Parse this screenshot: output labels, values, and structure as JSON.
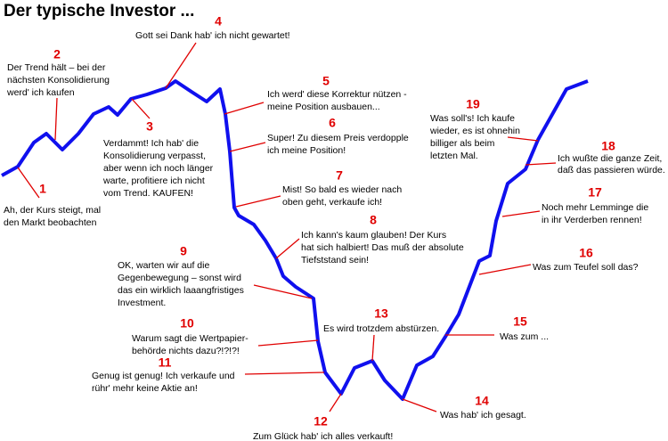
{
  "title": "Der typische Investor ...",
  "annotations": [
    {
      "number": "1",
      "lines": [
        "Ah, der Kurs steigt, mal",
        "den Markt beobachten"
      ]
    },
    {
      "number": "2",
      "lines": [
        "Der Trend hält – bei der",
        "nächsten Konsolidierung",
        "werd' ich kaufen"
      ]
    },
    {
      "number": "3",
      "lines": [
        "Verdammt! Ich hab' die",
        "Konsolidierung verpasst,",
        "aber wenn ich noch länger",
        "warte, profitiere ich nicht",
        "vom Trend. KAUFEN!"
      ]
    },
    {
      "number": "4",
      "lines": [
        "Gott sei Dank hab' ich nicht gewartet!"
      ]
    },
    {
      "number": "5",
      "lines": [
        "Ich werd' diese Korrektur nützen -",
        "meine Position ausbauen..."
      ]
    },
    {
      "number": "6",
      "lines": [
        "Super! Zu diesem Preis verdopple",
        "ich meine Position!"
      ]
    },
    {
      "number": "7",
      "lines": [
        "Mist! So bald es wieder nach",
        "oben geht, verkaufe ich!"
      ]
    },
    {
      "number": "8",
      "lines": [
        "Ich kann's kaum glauben! Der Kurs",
        "hat sich halbiert! Das muß der absolute",
        "Tiefststand sein!"
      ]
    },
    {
      "number": "9",
      "lines": [
        "OK, warten wir auf die",
        "Gegenbewegung – sonst wird",
        "das ein wirklich laaangfristiges",
        "Investment."
      ]
    },
    {
      "number": "10",
      "lines": [
        "Warum sagt die Wertpapier-",
        "behörde nichts dazu?!?!?!"
      ]
    },
    {
      "number": "11",
      "lines": [
        "Genug ist genug! Ich verkaufe und",
        "rühr' mehr keine Aktie an!"
      ]
    },
    {
      "number": "12",
      "lines": [
        "Zum Glück hab' ich alles verkauft!"
      ]
    },
    {
      "number": "13",
      "lines": [
        "Es wird trotzdem abstürzen."
      ]
    },
    {
      "number": "14",
      "lines": [
        "Was hab' ich gesagt."
      ]
    },
    {
      "number": "15",
      "lines": [
        "Was zum ..."
      ]
    },
    {
      "number": "16",
      "lines": [
        "Was zum Teufel soll das?"
      ]
    },
    {
      "number": "17",
      "lines": [
        "Noch mehr Lemminge die",
        "in ihr Verderben rennen!"
      ]
    },
    {
      "number": "18",
      "lines": [
        "Ich wußte die ganze Zeit,",
        "daß das passieren würde."
      ]
    },
    {
      "number": "19",
      "lines": [
        "Was soll's! Ich kaufe",
        "wieder, es ist ohnehin",
        "billiger als beim",
        "letzten Mal."
      ]
    }
  ]
}
